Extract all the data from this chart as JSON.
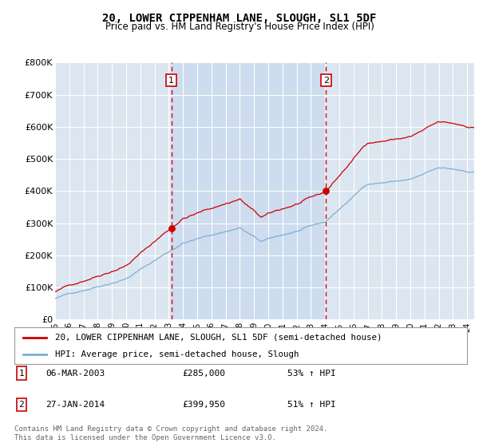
{
  "title": "20, LOWER CIPPENHAM LANE, SLOUGH, SL1 5DF",
  "subtitle": "Price paid vs. HM Land Registry's House Price Index (HPI)",
  "background_color": "#dce6f1",
  "shaded_region_color": "#c8d8ed",
  "red_line_color": "#cc0000",
  "blue_line_color": "#7bafd4",
  "dashed_line_color": "#cc0000",
  "grid_color": "#ffffff",
  "ylim": [
    0,
    800000
  ],
  "yticks": [
    0,
    100000,
    200000,
    300000,
    400000,
    500000,
    600000,
    700000,
    800000
  ],
  "ytick_labels": [
    "£0",
    "£100K",
    "£200K",
    "£300K",
    "£400K",
    "£500K",
    "£600K",
    "£700K",
    "£800K"
  ],
  "sale1_year": 2003.18,
  "sale1_price": 285000,
  "sale1_label": "1",
  "sale2_year": 2014.07,
  "sale2_price": 399950,
  "sale2_label": "2",
  "legend_red": "20, LOWER CIPPENHAM LANE, SLOUGH, SL1 5DF (semi-detached house)",
  "legend_blue": "HPI: Average price, semi-detached house, Slough",
  "table_row1": [
    "1",
    "06-MAR-2003",
    "£285,000",
    "53% ↑ HPI"
  ],
  "table_row2": [
    "2",
    "27-JAN-2014",
    "£399,950",
    "51% ↑ HPI"
  ],
  "footnote": "Contains HM Land Registry data © Crown copyright and database right 2024.\nThis data is licensed under the Open Government Licence v3.0.",
  "xmin": 1995,
  "xmax": 2024.5
}
